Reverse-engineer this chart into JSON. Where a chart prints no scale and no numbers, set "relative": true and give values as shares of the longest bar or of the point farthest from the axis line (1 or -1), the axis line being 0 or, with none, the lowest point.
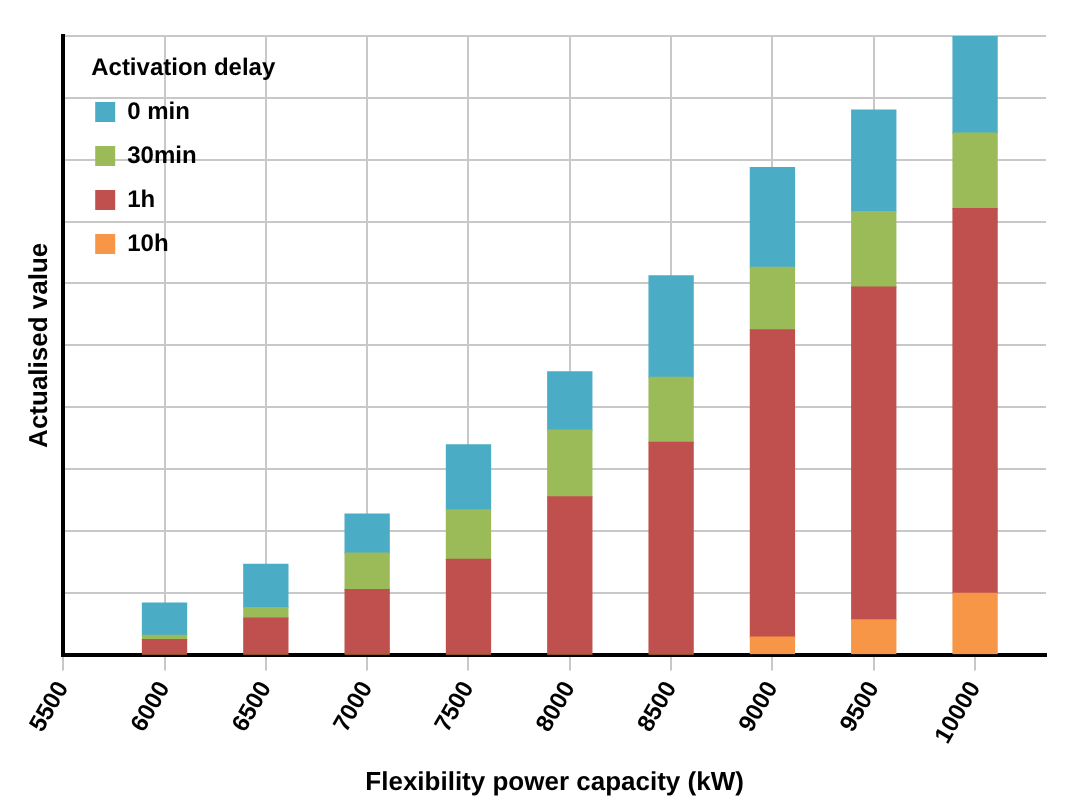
{
  "chart_data": {
    "type": "bar",
    "stacked": true,
    "relative": true,
    "xlabel": "Flexibility power capacity (kW)",
    "ylabel": "Actualised value",
    "legend_title": "Activation delay",
    "legend": "top left",
    "grid": true,
    "x": [
      6000,
      6500,
      7000,
      7500,
      8000,
      8500,
      9000,
      9500,
      10000
    ],
    "xlim": [
      5500,
      10350
    ],
    "xticks": [
      5500,
      6000,
      6500,
      7000,
      7500,
      8000,
      8500,
      9000,
      9500,
      10000
    ],
    "series": [
      {
        "name": "10h",
        "color": "#f79646",
        "values": [
          0,
          0,
          0,
          0,
          0,
          0,
          0.028,
          0.056,
          0.099
        ]
      },
      {
        "name": "1h",
        "color": "#c0504d",
        "values": [
          0.024,
          0.059,
          0.105,
          0.154,
          0.255,
          0.343,
          0.497,
          0.538,
          0.622
        ]
      },
      {
        "name": "30min",
        "color": "#9bbb59",
        "values": [
          0.007,
          0.017,
          0.059,
          0.08,
          0.108,
          0.105,
          0.101,
          0.122,
          0.122
        ]
      },
      {
        "name": "0 min",
        "color": "#4bacc6",
        "values": [
          0.052,
          0.07,
          0.063,
          0.105,
          0.094,
          0.164,
          0.161,
          0.164,
          0.157
        ]
      }
    ]
  }
}
